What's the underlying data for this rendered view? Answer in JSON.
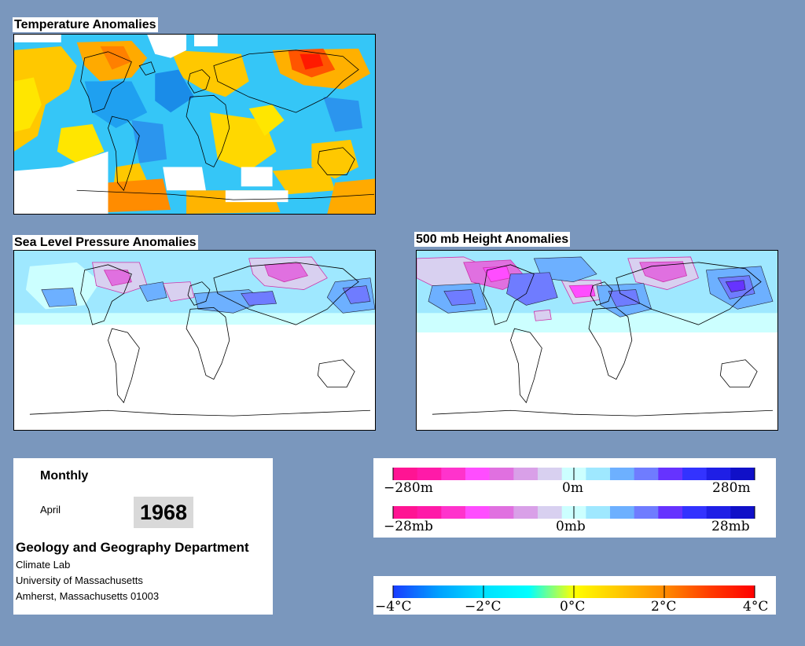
{
  "panels": {
    "temperature": {
      "title": "Temperature Anomalies"
    },
    "slp": {
      "title": "Sea Level Pressure Anomalies"
    },
    "height500": {
      "title": "500 mb Height Anomalies"
    }
  },
  "info": {
    "period": "Monthly",
    "month": "April",
    "year": "1968",
    "department": "Geology and Geography Department",
    "lab": "Climate Lab",
    "university": "University of Massachusetts",
    "address": "Amherst, Massachusetts 01003"
  },
  "legends": {
    "height": {
      "min_label": "−280m",
      "mid_label": "0m",
      "max_label": "280m"
    },
    "pressure": {
      "min_label": "−28mb",
      "mid_label": "0mb",
      "max_label": "28mb"
    },
    "temperature": {
      "ticks": [
        "−4°C",
        "−2°C",
        "0°C",
        "2°C",
        "4°C"
      ]
    }
  },
  "colors": {
    "background": "#7a97bd",
    "anomaly_scale_pink_to_blue": [
      "#ff1493",
      "#ff1aa8",
      "#ff33cc",
      "#ff4dff",
      "#e070e0",
      "#d9a0e8",
      "#d8d0f0",
      "#ccffff",
      "#9fe8ff",
      "#6db0ff",
      "#6f7cff",
      "#6633ff",
      "#3333ff",
      "#1f1fe6",
      "#1010c8"
    ],
    "temperature_scale": [
      "#1a3bff",
      "#00a0ff",
      "#00e0ff",
      "#00ffff",
      "#ffff00",
      "#ffc800",
      "#ff8c00",
      "#ff3c00",
      "#ff0000"
    ]
  }
}
